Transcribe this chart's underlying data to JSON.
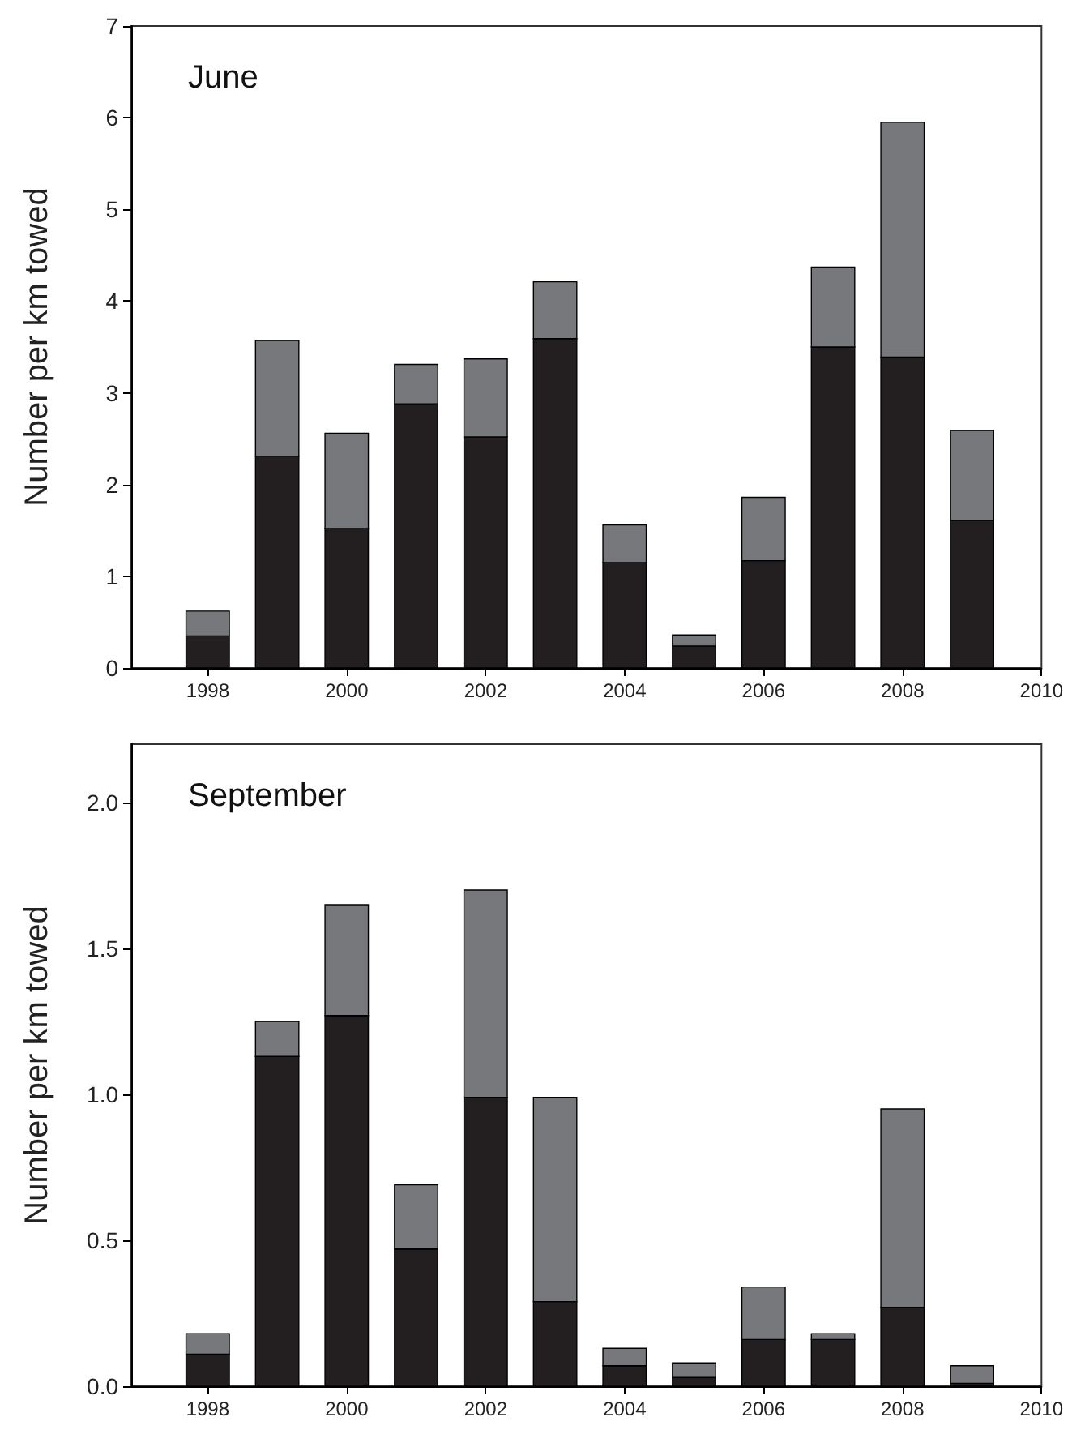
{
  "chart_data": [
    {
      "type": "bar",
      "title": "June",
      "ylabel": "Number per km towed",
      "stacked": true,
      "x": [
        1998,
        1999,
        2000,
        2001,
        2002,
        2003,
        2004,
        2005,
        2006,
        2007,
        2008,
        2009
      ],
      "series": [
        {
          "color": "#231f20",
          "values": [
            0.35,
            2.31,
            1.52,
            2.88,
            2.52,
            3.59,
            1.15,
            0.24,
            1.17,
            3.5,
            3.39,
            1.61
          ]
        },
        {
          "color": "#77787b",
          "values": [
            0.27,
            1.26,
            1.04,
            0.43,
            0.85,
            0.62,
            0.41,
            0.12,
            0.69,
            0.87,
            2.56,
            0.98
          ]
        }
      ],
      "xlim": [
        1996.9,
        2010
      ],
      "xticks": [
        1998,
        2000,
        2002,
        2004,
        2006,
        2008,
        2010
      ],
      "ylim": [
        0,
        7
      ],
      "yticks": [
        0,
        1,
        2,
        3,
        4,
        5,
        6,
        7
      ]
    },
    {
      "type": "bar",
      "title": "September",
      "ylabel": "Number per km towed",
      "stacked": true,
      "x": [
        1998,
        1999,
        2000,
        2001,
        2002,
        2003,
        2004,
        2005,
        2006,
        2007,
        2008,
        2009
      ],
      "series": [
        {
          "color": "#231f20",
          "values": [
            0.11,
            1.13,
            1.27,
            0.47,
            0.99,
            0.29,
            0.07,
            0.03,
            0.16,
            0.16,
            0.27,
            0.01
          ]
        },
        {
          "color": "#77787b",
          "values": [
            0.07,
            0.12,
            0.38,
            0.22,
            0.71,
            0.7,
            0.06,
            0.05,
            0.18,
            0.02,
            0.68,
            0.06
          ]
        }
      ],
      "xlim": [
        1996.9,
        2010
      ],
      "xticks": [
        1998,
        2000,
        2002,
        2004,
        2006,
        2008,
        2010
      ],
      "ylim": [
        0,
        2.2
      ],
      "yticks": [
        {
          "value": 0,
          "label": "0.0"
        },
        {
          "value": 0.5,
          "label": "0.5"
        },
        {
          "value": 1,
          "label": "1.0"
        },
        {
          "value": 1.5,
          "label": "1.5"
        },
        {
          "value": 2,
          "label": "2.0"
        }
      ]
    }
  ]
}
